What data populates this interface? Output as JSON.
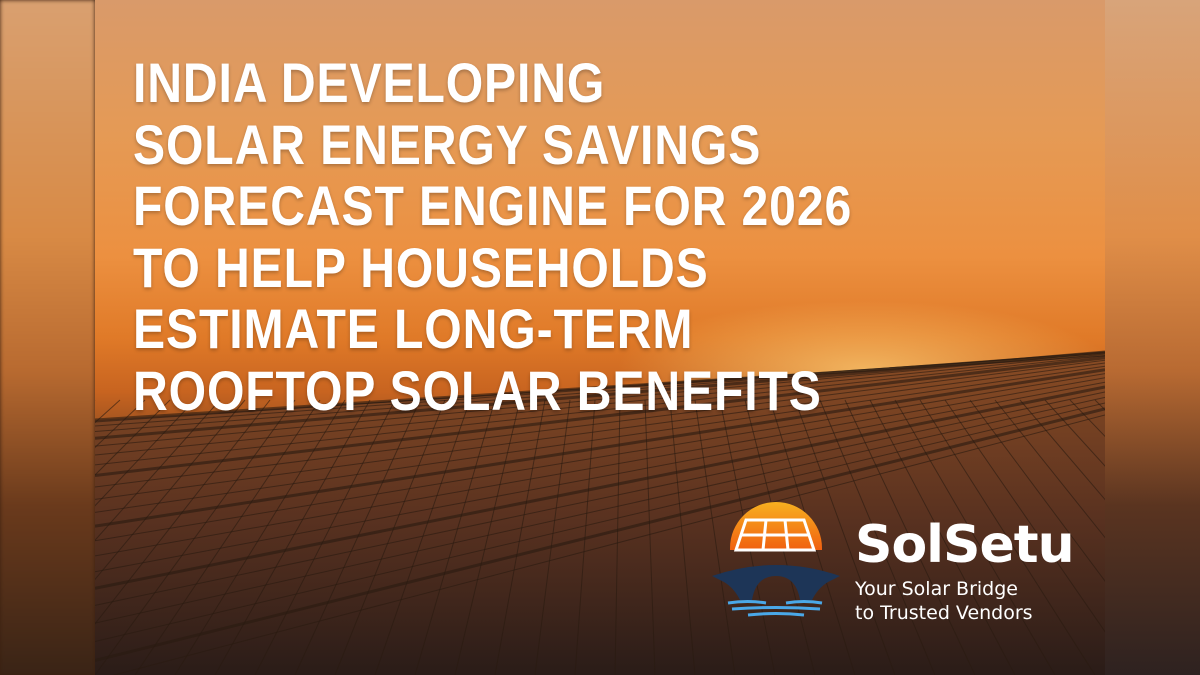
{
  "headline": {
    "lines": [
      "INDIA DEVELOPING",
      "SOLAR ENERGY SAVINGS",
      "FORECAST ENGINE FOR 2026",
      "TO HELP HOUSEHOLDS",
      "ESTIMATE LONG-TERM",
      "ROOFTOP SOLAR BENEFITS"
    ]
  },
  "logo": {
    "brand": "SolSetu",
    "tagline_line1": "Your Solar Bridge",
    "tagline_line2": "to Trusted Vendors",
    "icon": "sun-solar-panel-bridge-logo",
    "colors": {
      "sun": "#f39a1c",
      "panel": "#f06a10",
      "bridge": "#1d3557",
      "water": "#3a9ad9"
    }
  }
}
